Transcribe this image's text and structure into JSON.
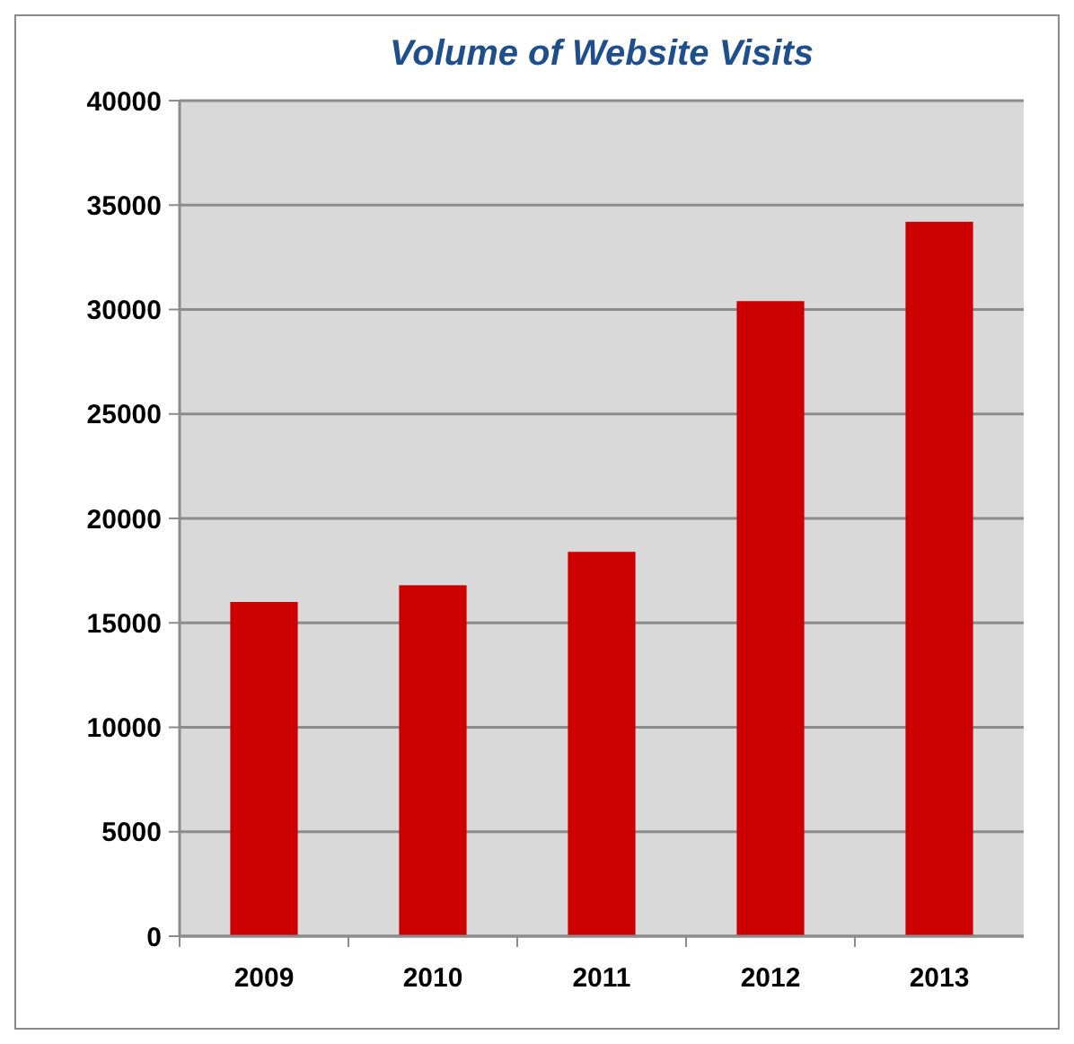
{
  "chart_data": {
    "type": "bar",
    "title": "Volume of Website Visits",
    "categories": [
      "2009",
      "2010",
      "2011",
      "2012",
      "2013"
    ],
    "values": [
      16000,
      16800,
      18400,
      30400,
      34200
    ],
    "color": "#cc0000",
    "ylim": [
      0,
      40000
    ],
    "yticks": [
      0,
      5000,
      10000,
      15000,
      20000,
      25000,
      30000,
      35000,
      40000
    ],
    "grid": "y"
  }
}
